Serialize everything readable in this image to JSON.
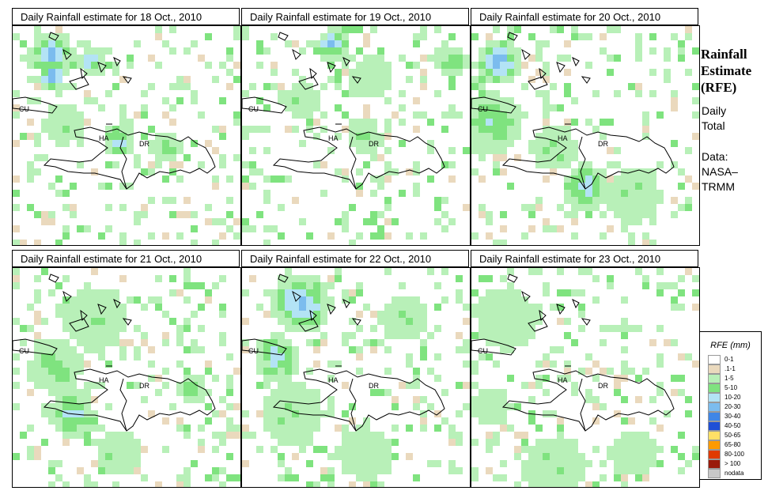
{
  "panels": [
    {
      "title": "Daily Rainfall estimate for  18 Oct., 2010",
      "hotspots": [
        {
          "cx": 45,
          "cy": 30,
          "r": 28,
          "c": 6
        },
        {
          "cx": 45,
          "cy": 58,
          "r": 18,
          "c": 7
        },
        {
          "cx": 95,
          "cy": 40,
          "r": 16,
          "c": 6
        },
        {
          "cx": 130,
          "cy": 140,
          "r": 22,
          "c": 5
        },
        {
          "cx": 60,
          "cy": 120,
          "r": 26,
          "c": 3
        },
        {
          "cx": 190,
          "cy": 150,
          "r": 20,
          "c": 4
        }
      ]
    },
    {
      "title": "Daily Rainfall estimate for  19 Oct., 2010",
      "hotspots": [
        {
          "cx": 110,
          "cy": 18,
          "r": 20,
          "c": 6
        },
        {
          "cx": 160,
          "cy": 60,
          "r": 26,
          "c": 3
        },
        {
          "cx": 70,
          "cy": 90,
          "r": 24,
          "c": 3
        },
        {
          "cx": 150,
          "cy": 135,
          "r": 22,
          "c": 3
        },
        {
          "cx": 260,
          "cy": 40,
          "r": 20,
          "c": 4
        }
      ]
    },
    {
      "title": "Daily Rainfall estimate for  20 Oct., 2010",
      "hotspots": [
        {
          "cx": 30,
          "cy": 40,
          "r": 30,
          "c": 6
        },
        {
          "cx": 20,
          "cy": 120,
          "r": 40,
          "c": 4
        },
        {
          "cx": 140,
          "cy": 200,
          "r": 30,
          "c": 5
        },
        {
          "cx": 100,
          "cy": 150,
          "r": 30,
          "c": 3
        },
        {
          "cx": 200,
          "cy": 210,
          "r": 35,
          "c": 3
        }
      ]
    },
    {
      "title": "Daily Rainfall estimate for  21 Oct., 2010",
      "hotspots": [
        {
          "cx": 70,
          "cy": 180,
          "r": 30,
          "c": 5
        },
        {
          "cx": 50,
          "cy": 120,
          "r": 34,
          "c": 4
        },
        {
          "cx": 100,
          "cy": 60,
          "r": 40,
          "c": 3
        },
        {
          "cx": 130,
          "cy": 230,
          "r": 30,
          "c": 3
        },
        {
          "cx": 220,
          "cy": 150,
          "r": 16,
          "c": 4
        }
      ]
    },
    {
      "title": "Daily Rainfall estimate for  22 Oct., 2010",
      "hotspots": [
        {
          "cx": 70,
          "cy": 40,
          "r": 40,
          "c": 6
        },
        {
          "cx": 40,
          "cy": 110,
          "r": 30,
          "c": 5
        },
        {
          "cx": 60,
          "cy": 180,
          "r": 40,
          "c": 3
        },
        {
          "cx": 150,
          "cy": 230,
          "r": 34,
          "c": 2
        },
        {
          "cx": 200,
          "cy": 60,
          "r": 30,
          "c": 3
        }
      ]
    },
    {
      "title": "Daily Rainfall estimate for  23 Oct., 2010",
      "hotspots": [
        {
          "cx": 40,
          "cy": 60,
          "r": 40,
          "c": 3
        },
        {
          "cx": 100,
          "cy": 250,
          "r": 40,
          "c": 3
        },
        {
          "cx": 200,
          "cy": 230,
          "r": 30,
          "c": 2
        },
        {
          "cx": 20,
          "cy": 170,
          "r": 26,
          "c": 3
        }
      ]
    }
  ],
  "map_labels": {
    "cuba": "CU",
    "haiti": "HA",
    "dr": "DR"
  },
  "side": {
    "title_lines": [
      "Rainfall",
      "Estimate",
      "(RFE)"
    ],
    "daily": [
      "Daily",
      "Total"
    ],
    "data": [
      "Data:",
      "NASA–",
      "TRMM"
    ]
  },
  "legend": {
    "title": "RFE (mm)",
    "items": [
      {
        "label": "0-1",
        "color": "#ffffff"
      },
      {
        "label": ".1-1",
        "color": "#ead9bd"
      },
      {
        "label": "1-5",
        "color": "#b8f0b8"
      },
      {
        "label": "5-10",
        "color": "#7fe37f"
      },
      {
        "label": "10-20",
        "color": "#b3e3f5"
      },
      {
        "label": "20-30",
        "color": "#7bbcee"
      },
      {
        "label": "30-40",
        "color": "#3f86e6"
      },
      {
        "label": "40-50",
        "color": "#1f4fd6"
      },
      {
        "label": "50-65",
        "color": "#ffe066"
      },
      {
        "label": "65-80",
        "color": "#ff9a00"
      },
      {
        "label": "80-100",
        "color": "#e03a00"
      },
      {
        "label": "> 100",
        "color": "#9a1a0a"
      },
      {
        "label": "nodata",
        "color": "#c8c8c8"
      }
    ]
  }
}
